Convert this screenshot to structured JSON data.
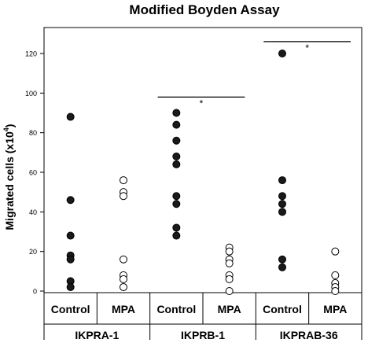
{
  "chart_data": {
    "type": "scatter",
    "title": "Modified Boyden Assay",
    "ylabel": "Migrated cells (x10⁴)",
    "ylabel_main": "Migrated cells (x10",
    "ylabel_sup": "4",
    "ylabel_close": ")",
    "ylim": [
      0,
      130
    ],
    "yticks": [
      "0",
      "20",
      "40",
      "60",
      "80",
      "100",
      "120"
    ],
    "grid": false,
    "groups": [
      {
        "cell_line": "IKPRA-1",
        "conditions": [
          "Control",
          "MPA"
        ]
      },
      {
        "cell_line": "IKPRB-1",
        "conditions": [
          "Control",
          "MPA"
        ]
      },
      {
        "cell_line": "IKPRAB-36",
        "conditions": [
          "Control",
          "MPA"
        ]
      }
    ],
    "series": [
      {
        "group": "IKPRA-1",
        "condition": "Control",
        "marker": "filled",
        "values": [
          88,
          46,
          28,
          18,
          16,
          5,
          2
        ]
      },
      {
        "group": "IKPRA-1",
        "condition": "MPA",
        "marker": "open",
        "values": [
          56,
          50,
          48,
          16,
          8,
          6,
          2
        ]
      },
      {
        "group": "IKPRB-1",
        "condition": "Control",
        "marker": "filled",
        "values": [
          90,
          84,
          76,
          68,
          64,
          48,
          44,
          32,
          28
        ]
      },
      {
        "group": "IKPRB-1",
        "condition": "MPA",
        "marker": "open",
        "values": [
          22,
          20,
          16,
          14,
          8,
          6,
          0
        ]
      },
      {
        "group": "IKPRAB-36",
        "condition": "Control",
        "marker": "filled",
        "values": [
          120,
          56,
          48,
          44,
          40,
          16,
          12
        ]
      },
      {
        "group": "IKPRAB-36",
        "condition": "MPA",
        "marker": "open",
        "values": [
          20,
          8,
          4,
          2,
          0
        ]
      }
    ],
    "significance": [
      {
        "group": "IKPRB-1",
        "label": "*",
        "y": 98
      },
      {
        "group": "IKPRAB-36",
        "label": "*",
        "y": 126
      }
    ],
    "colors": {
      "filled": "#1a1a1a",
      "open": "#ffffff",
      "stroke": "#000000"
    }
  }
}
